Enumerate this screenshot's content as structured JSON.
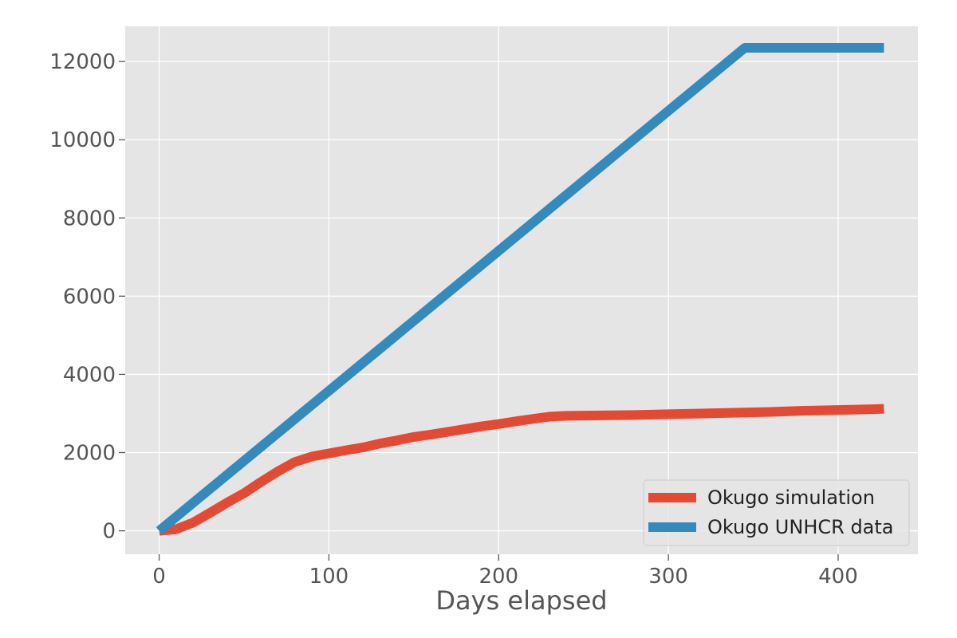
{
  "chart_data": {
    "type": "line",
    "title": "",
    "xlabel": "Days elapsed",
    "ylabel": "",
    "xlim": [
      -20,
      447
    ],
    "ylim": [
      -600,
      12900
    ],
    "xticks": [
      0,
      100,
      200,
      300,
      400
    ],
    "yticks": [
      0,
      2000,
      4000,
      6000,
      8000,
      10000,
      12000
    ],
    "grid": true,
    "legend_position": "lower-right",
    "series": [
      {
        "name": "Okugo simulation",
        "color": "#e24a33",
        "points": [
          [
            0,
            0
          ],
          [
            10,
            40
          ],
          [
            20,
            210
          ],
          [
            30,
            460
          ],
          [
            40,
            720
          ],
          [
            50,
            960
          ],
          [
            60,
            1250
          ],
          [
            70,
            1520
          ],
          [
            80,
            1760
          ],
          [
            90,
            1900
          ],
          [
            100,
            1980
          ],
          [
            110,
            2060
          ],
          [
            120,
            2130
          ],
          [
            130,
            2230
          ],
          [
            140,
            2310
          ],
          [
            150,
            2400
          ],
          [
            160,
            2460
          ],
          [
            170,
            2530
          ],
          [
            180,
            2600
          ],
          [
            190,
            2670
          ],
          [
            200,
            2730
          ],
          [
            210,
            2800
          ],
          [
            220,
            2860
          ],
          [
            230,
            2920
          ],
          [
            240,
            2940
          ],
          [
            260,
            2950
          ],
          [
            280,
            2960
          ],
          [
            300,
            2980
          ],
          [
            320,
            3000
          ],
          [
            340,
            3020
          ],
          [
            360,
            3040
          ],
          [
            380,
            3070
          ],
          [
            400,
            3090
          ],
          [
            420,
            3110
          ],
          [
            427,
            3120
          ]
        ]
      },
      {
        "name": "Okugo UNHCR data",
        "color": "#348abd",
        "points": [
          [
            0,
            0
          ],
          [
            345,
            12350
          ],
          [
            427,
            12350
          ]
        ]
      }
    ]
  }
}
